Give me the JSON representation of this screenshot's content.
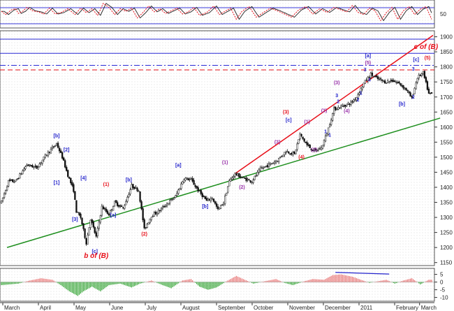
{
  "chart_data": {
    "type": "candlestick",
    "title": "",
    "x_labels": [
      "March",
      "April",
      "May",
      "June",
      "July",
      "August",
      "September",
      "October",
      "November",
      "December",
      "2011",
      "February",
      "March"
    ],
    "price_axis": {
      "ticks": [
        1150,
        1200,
        1250,
        1300,
        1350,
        1400,
        1450,
        1500,
        1550,
        1600,
        1650,
        1700,
        1750,
        1800,
        1850,
        1900
      ],
      "ylim": [
        1140,
        1920
      ]
    },
    "osc_axis": {
      "ticks": [
        50
      ],
      "ylim": [
        0,
        100
      ]
    },
    "macd_axis": {
      "ticks": [
        5,
        0,
        -5,
        -10
      ],
      "ylim": [
        -12,
        8
      ]
    },
    "horizontal_lines": [
      {
        "value": 1892,
        "style": "solid",
        "color": "#2a2ad6"
      },
      {
        "value": 1845,
        "style": "solid",
        "color": "#2a2ad6"
      },
      {
        "value": 1805,
        "style": "dashdot",
        "color": "#2a2ad6"
      },
      {
        "value": 1790,
        "style": "dashed",
        "color": "#e8101a"
      }
    ],
    "trendlines": [
      {
        "from": [
          4,
          1200
        ],
        "to": [
          310,
          1630
        ],
        "color": "#1e8f1e"
      },
      {
        "from": [
          165,
          1445
        ],
        "to": [
          305,
          1905
        ],
        "color": "#e8101a"
      }
    ],
    "price_anchors": [
      [
        0,
        1350
      ],
      [
        5,
        1420
      ],
      [
        10,
        1420
      ],
      [
        18,
        1475
      ],
      [
        25,
        1465
      ],
      [
        32,
        1510
      ],
      [
        39,
        1545
      ],
      [
        43,
        1500
      ],
      [
        47,
        1440
      ],
      [
        51,
        1390
      ],
      [
        53,
        1320
      ],
      [
        56,
        1300
      ],
      [
        60,
        1215
      ],
      [
        63,
        1295
      ],
      [
        67,
        1235
      ],
      [
        71,
        1335
      ],
      [
        76,
        1310
      ],
      [
        80,
        1350
      ],
      [
        86,
        1330
      ],
      [
        92,
        1405
      ],
      [
        97,
        1390
      ],
      [
        101,
        1260
      ],
      [
        106,
        1305
      ],
      [
        111,
        1320
      ],
      [
        117,
        1345
      ],
      [
        123,
        1370
      ],
      [
        129,
        1430
      ],
      [
        134,
        1425
      ],
      [
        139,
        1390
      ],
      [
        145,
        1355
      ],
      [
        149,
        1365
      ],
      [
        153,
        1325
      ],
      [
        157,
        1350
      ],
      [
        161,
        1420
      ],
      [
        165,
        1445
      ],
      [
        171,
        1430
      ],
      [
        177,
        1420
      ],
      [
        183,
        1460
      ],
      [
        189,
        1475
      ],
      [
        195,
        1490
      ],
      [
        201,
        1520
      ],
      [
        207,
        1510
      ],
      [
        211,
        1575
      ],
      [
        216,
        1540
      ],
      [
        221,
        1520
      ],
      [
        226,
        1530
      ],
      [
        230,
        1580
      ],
      [
        235,
        1660
      ],
      [
        241,
        1670
      ],
      [
        247,
        1680
      ],
      [
        251,
        1700
      ],
      [
        256,
        1745
      ],
      [
        261,
        1775
      ],
      [
        266,
        1760
      ],
      [
        271,
        1750
      ],
      [
        276,
        1755
      ],
      [
        281,
        1745
      ],
      [
        286,
        1725
      ],
      [
        290,
        1695
      ],
      [
        294,
        1765
      ],
      [
        298,
        1780
      ],
      [
        302,
        1710
      ]
    ],
    "osc_series": {
      "k_anchors": [
        [
          0,
          60
        ],
        [
          3,
          48
        ],
        [
          7,
          65
        ],
        [
          10,
          70
        ],
        [
          12,
          52
        ],
        [
          15,
          60
        ],
        [
          18,
          75
        ],
        [
          22,
          62
        ],
        [
          26,
          58
        ],
        [
          30,
          50
        ],
        [
          34,
          72
        ],
        [
          38,
          50
        ],
        [
          42,
          55
        ],
        [
          47,
          70
        ],
        [
          52,
          48
        ],
        [
          56,
          72
        ],
        [
          60,
          55
        ],
        [
          64,
          70
        ],
        [
          68,
          45
        ],
        [
          72,
          90
        ],
        [
          76,
          75
        ],
        [
          80,
          48
        ],
        [
          84,
          70
        ],
        [
          88,
          60
        ],
        [
          92,
          72
        ],
        [
          96,
          35
        ],
        [
          100,
          55
        ],
        [
          104,
          80
        ],
        [
          108,
          58
        ],
        [
          112,
          70
        ],
        [
          116,
          52
        ],
        [
          120,
          62
        ],
        [
          124,
          72
        ],
        [
          128,
          50
        ],
        [
          132,
          58
        ],
        [
          136,
          75
        ],
        [
          140,
          45
        ],
        [
          145,
          55
        ],
        [
          150,
          80
        ],
        [
          154,
          48
        ],
        [
          158,
          60
        ],
        [
          162,
          72
        ],
        [
          166,
          30
        ],
        [
          170,
          60
        ],
        [
          175,
          78
        ],
        [
          180,
          38
        ],
        [
          185,
          55
        ],
        [
          190,
          72
        ],
        [
          195,
          62
        ],
        [
          200,
          50
        ],
        [
          205,
          38
        ],
        [
          210,
          65
        ],
        [
          215,
          78
        ],
        [
          220,
          50
        ],
        [
          225,
          70
        ],
        [
          230,
          56
        ],
        [
          235,
          75
        ],
        [
          240,
          65
        ],
        [
          244,
          58
        ],
        [
          248,
          82
        ],
        [
          252,
          56
        ],
        [
          256,
          48
        ],
        [
          260,
          72
        ],
        [
          264,
          62
        ],
        [
          268,
          25
        ],
        [
          272,
          55
        ],
        [
          276,
          75
        ],
        [
          280,
          30
        ],
        [
          284,
          62
        ],
        [
          288,
          78
        ],
        [
          292,
          48
        ],
        [
          296,
          68
        ],
        [
          300,
          78
        ],
        [
          304,
          30
        ]
      ]
    },
    "macd_anchors": [
      [
        0,
        -2
      ],
      [
        12,
        -1
      ],
      [
        20,
        1
      ],
      [
        28,
        2.5
      ],
      [
        36,
        1.5
      ],
      [
        42,
        -2
      ],
      [
        48,
        -6
      ],
      [
        54,
        -9
      ],
      [
        58,
        -6
      ],
      [
        64,
        -3
      ],
      [
        70,
        -6
      ],
      [
        76,
        -2
      ],
      [
        84,
        -1
      ],
      [
        92,
        -3.5
      ],
      [
        98,
        -1
      ],
      [
        106,
        1
      ],
      [
        114,
        -2
      ],
      [
        120,
        -4
      ],
      [
        128,
        1
      ],
      [
        134,
        2
      ],
      [
        140,
        -3
      ],
      [
        146,
        -5
      ],
      [
        152,
        -3.5
      ],
      [
        160,
        1
      ],
      [
        166,
        4
      ],
      [
        172,
        1.5
      ],
      [
        178,
        -1
      ],
      [
        186,
        0.5
      ],
      [
        194,
        2
      ],
      [
        200,
        -0.5
      ],
      [
        206,
        -2
      ],
      [
        214,
        0.5
      ],
      [
        220,
        2
      ],
      [
        228,
        1.5
      ],
      [
        234,
        4.5
      ],
      [
        240,
        5
      ],
      [
        248,
        3.5
      ],
      [
        254,
        1.5
      ],
      [
        260,
        -0.5
      ],
      [
        266,
        0.5
      ],
      [
        272,
        1.5
      ],
      [
        278,
        -1
      ],
      [
        284,
        1
      ],
      [
        290,
        2.5
      ],
      [
        296,
        -1.5
      ],
      [
        302,
        1.5
      ]
    ],
    "macd_highlight": {
      "from": [
        236,
        6.3
      ],
      "to": [
        274,
        5.2
      ]
    },
    "wave_labels": [
      {
        "t": 39,
        "v": 1566,
        "text": "[b]",
        "color": "#2222cc"
      },
      {
        "t": 46,
        "v": 1520,
        "text": "[2]",
        "color": "#2222cc"
      },
      {
        "t": 39,
        "v": 1410,
        "text": "[1]",
        "color": "#2222cc"
      },
      {
        "t": 58,
        "v": 1425,
        "text": "[4]",
        "color": "#2222cc"
      },
      {
        "t": 52,
        "v": 1288,
        "text": "[3]",
        "color": "#2222cc"
      },
      {
        "t": 74,
        "v": 1405,
        "text": "(1)",
        "color": "#e8101a"
      },
      {
        "t": 90,
        "v": 1420,
        "text": "[b]",
        "color": "#2222cc"
      },
      {
        "t": 79,
        "v": 1302,
        "text": "[a]",
        "color": "#2222cc"
      },
      {
        "t": 66,
        "v": 1182,
        "text": "[c]",
        "color": "#2222cc"
      },
      {
        "t": 101,
        "v": 1240,
        "text": "(2)",
        "color": "#e8101a"
      },
      {
        "t": 125,
        "v": 1468,
        "text": "[a]",
        "color": "#2222cc"
      },
      {
        "t": 144,
        "v": 1332,
        "text": "[b]",
        "color": "#2222cc"
      },
      {
        "t": 158,
        "v": 1478,
        "text": "(1)",
        "color": "#9933aa"
      },
      {
        "t": 170,
        "v": 1395,
        "text": "(2)",
        "color": "#9933aa"
      },
      {
        "t": 201,
        "v": 1645,
        "text": "(3)",
        "color": "#e8101a"
      },
      {
        "t": 203,
        "v": 1618,
        "text": "[c]",
        "color": "#2222cc"
      },
      {
        "t": 212,
        "v": 1495,
        "text": "(4)",
        "color": "#e8101a"
      },
      {
        "t": 195,
        "v": 1545,
        "text": "(3)",
        "color": "#9933aa"
      },
      {
        "t": 216,
        "v": 1612,
        "text": "(1)",
        "color": "#9933aa"
      },
      {
        "t": 221,
        "v": 1520,
        "text": "(2)",
        "color": "#9933aa"
      },
      {
        "t": 228,
        "v": 1650,
        "text": "(3)",
        "color": "#9933aa"
      },
      {
        "t": 237,
        "v": 1742,
        "text": "(3)",
        "color": "#9933aa"
      },
      {
        "t": 244,
        "v": 1648,
        "text": "(4)",
        "color": "#9933aa"
      },
      {
        "t": 259,
        "v": 1832,
        "text": "[a]",
        "color": "#2222cc"
      },
      {
        "t": 259,
        "v": 1809,
        "text": "(5)",
        "color": "#9933aa"
      },
      {
        "t": 283,
        "v": 1672,
        "text": "[b]",
        "color": "#2222cc"
      },
      {
        "t": 293,
        "v": 1819,
        "text": "[c]",
        "color": "#2222cc"
      },
      {
        "t": 301,
        "v": 1825,
        "text": "(5)",
        "color": "#e8101a"
      },
      {
        "t": 232,
        "v": 1568,
        "text": "1",
        "color": "#2222cc"
      },
      {
        "t": 238,
        "v": 1680,
        "text": "2",
        "color": "#2222cc"
      },
      {
        "t": 254,
        "v": 1708,
        "text": "1",
        "color": "#2222cc"
      },
      {
        "t": 252,
        "v": 1685,
        "text": "2",
        "color": "#2222cc"
      },
      {
        "t": 257,
        "v": 1785,
        "text": "3",
        "color": "#2222cc"
      },
      {
        "t": 260,
        "v": 1752,
        "text": "4",
        "color": "#2222cc"
      },
      {
        "t": 291,
        "v": 1788,
        "text": "3",
        "color": "#2222cc"
      },
      {
        "t": 291,
        "v": 1695,
        "text": "2",
        "color": "#2222cc"
      },
      {
        "t": 229,
        "v": 1580,
        "text": "1",
        "color": "#2222cc"
      },
      {
        "t": 237,
        "v": 1700,
        "text": "3",
        "color": "#2222cc"
      }
    ],
    "big_labels": [
      {
        "t": 300,
        "v": 1860,
        "text": "c of (B)"
      },
      {
        "t": 67,
        "v": 1165,
        "text": "b of (B)"
      }
    ],
    "colors": {
      "up": "#ffffff",
      "down": "#111111",
      "k": "#e8101a",
      "d": "#222222",
      "macd_pos": "#e87272",
      "macd_neg": "#2ca02c",
      "macd_highlight": "#2222cc"
    }
  }
}
